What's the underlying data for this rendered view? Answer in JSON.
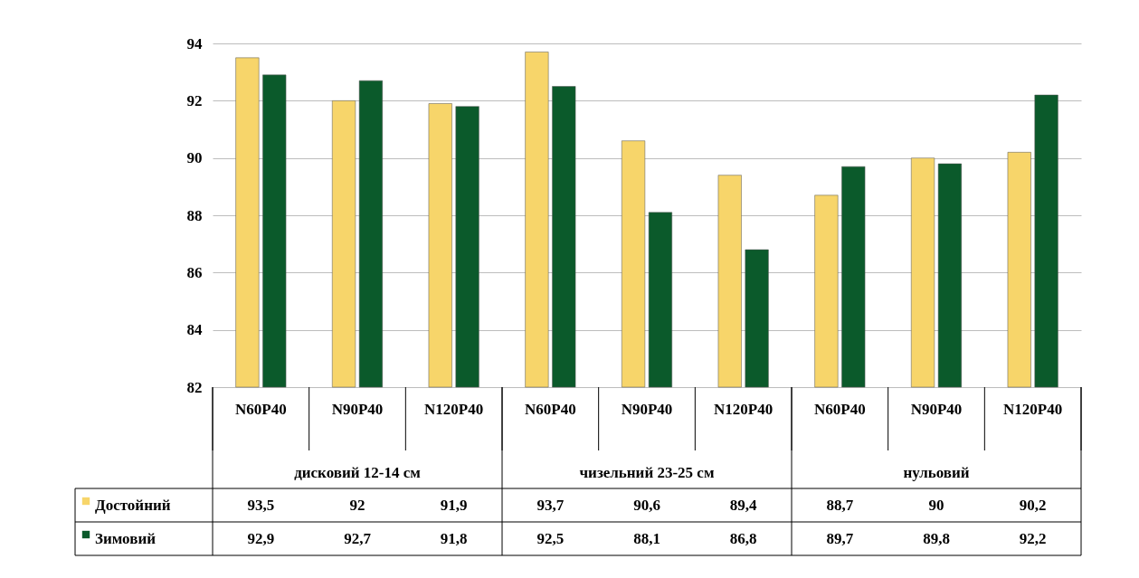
{
  "chart_data": {
    "type": "bar",
    "categories": [
      "N60P40",
      "N90P40",
      "N120P40",
      "N60P40",
      "N90P40",
      "N120P40",
      "N60P40",
      "N90P40",
      "N120P40"
    ],
    "series": [
      {
        "name": "Достойний",
        "color": "#f7d56a",
        "values": [
          93.5,
          92,
          91.9,
          93.7,
          90.6,
          89.4,
          88.7,
          90,
          90.2
        ],
        "value_labels": [
          "93,5",
          "92",
          "91,9",
          "93,7",
          "90,6",
          "89,4",
          "88,7",
          "90",
          "90,2"
        ]
      },
      {
        "name": "Зимовий",
        "color": "#0b5a2b",
        "values": [
          92.9,
          92.7,
          91.8,
          92.5,
          88.1,
          86.8,
          89.7,
          89.8,
          92.2
        ],
        "value_labels": [
          "92,9",
          "92,7",
          "91,8",
          "92,5",
          "88,1",
          "86,8",
          "89,7",
          "89,8",
          "92,2"
        ]
      }
    ],
    "annotations": [
      "дисковий 12-14 см",
      "чизельний 23-25 см",
      "нульовий"
    ],
    "ylim": [
      82,
      94
    ],
    "yticks": [
      82,
      84,
      86,
      88,
      90,
      92,
      94
    ],
    "grid": "y",
    "legend": "bottom left"
  }
}
